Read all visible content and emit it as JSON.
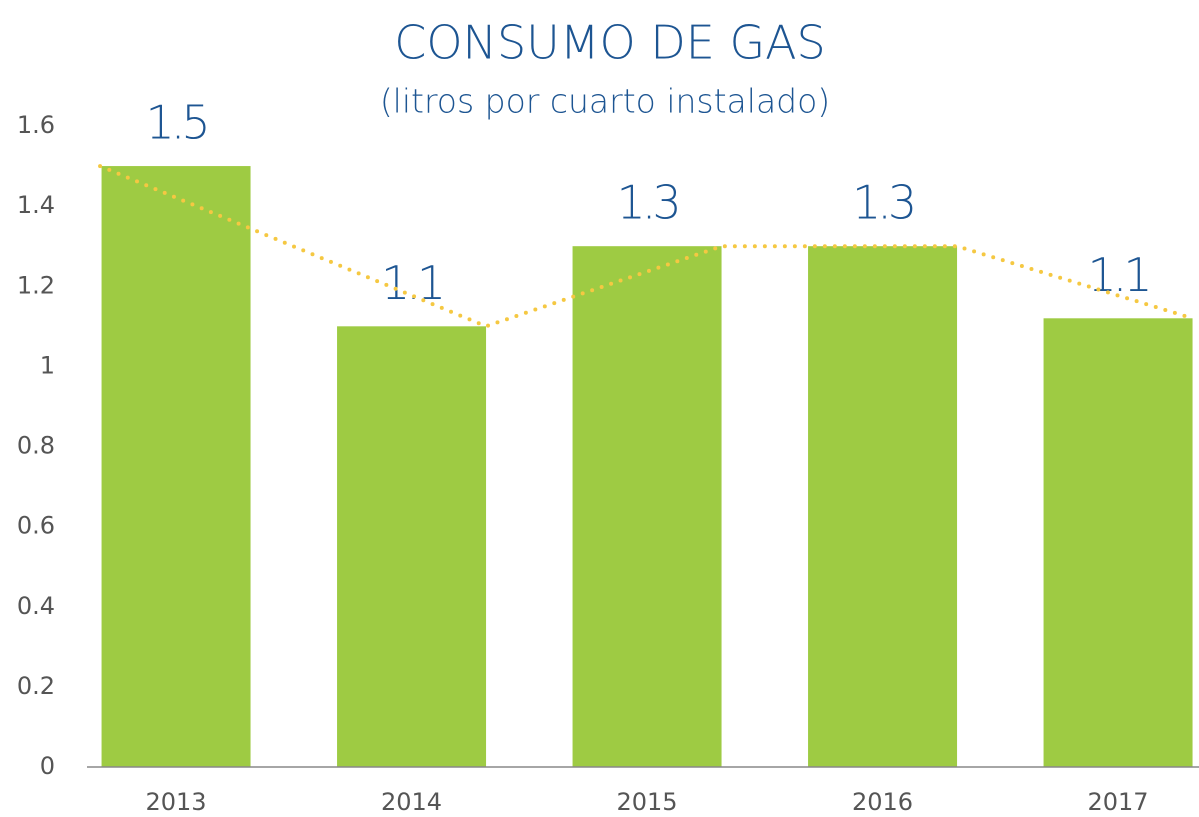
{
  "chart_data": {
    "type": "bar",
    "title": "CONSUMO DE GAS",
    "subtitle": "(litros por cuarto instalado)",
    "categories": [
      "2013",
      "2014",
      "2015",
      "2016",
      "2017"
    ],
    "series": [
      {
        "color": "#9ecb43",
        "values": [
          1.5,
          1.1,
          1.3,
          1.3,
          1.12
        ],
        "value_labels": [
          "1.5",
          "1.1",
          "1.3",
          "1.3",
          "1.1"
        ]
      },
      {
        "type": "line",
        "color": "#f5c842",
        "values": [
          1.5,
          1.1,
          1.3,
          1.3,
          1.12
        ]
      }
    ],
    "ylim": [
      0,
      1.6
    ],
    "yticks": [
      0,
      0.2,
      0.4,
      0.6,
      0.8,
      1,
      1.2,
      1.4,
      1.6
    ],
    "grid": false
  }
}
